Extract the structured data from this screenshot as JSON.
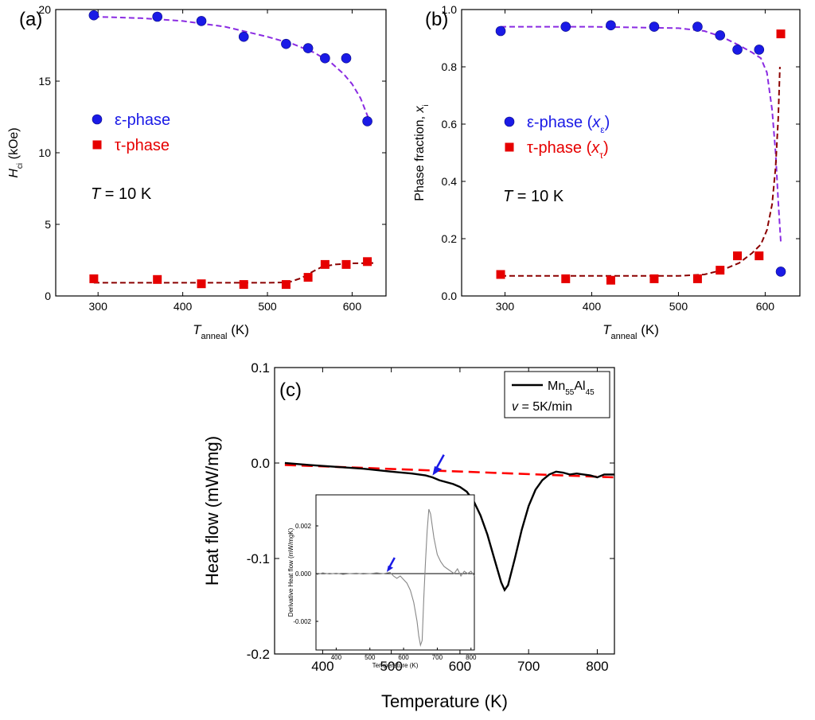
{
  "chart_data": [
    {
      "id": "a",
      "type": "scatter",
      "panel_label": "(a)",
      "xlabel_main": "T",
      "xlabel_sub": "anneal",
      "xlabel_unit": "(K)",
      "ylabel_main": "H",
      "ylabel_sub": "ci",
      "ylabel_unit": "(kOe)",
      "xlim": [
        250,
        640
      ],
      "ylim": [
        0,
        20
      ],
      "x_ticks": [
        300,
        400,
        500,
        600
      ],
      "y_ticks": [
        0,
        5,
        10,
        15,
        20
      ],
      "annotation": {
        "var": "T",
        "text": " = 10 K"
      },
      "legend": [
        {
          "label": "ε-phase",
          "color": "#1a1ae6",
          "marker": "circle"
        },
        {
          "label": "τ-phase",
          "color": "#e60000",
          "marker": "square"
        }
      ],
      "series": [
        {
          "name": "ε-phase",
          "marker": "circle",
          "color": "#1a1ae6",
          "x": [
            295,
            370,
            422,
            472,
            522,
            548,
            568,
            593,
            618
          ],
          "y": [
            19.6,
            19.5,
            19.2,
            18.1,
            17.6,
            17.3,
            16.6,
            16.6,
            12.2
          ]
        },
        {
          "name": "τ-phase",
          "marker": "square",
          "color": "#e60000",
          "x": [
            295,
            370,
            422,
            472,
            522,
            548,
            568,
            593,
            618
          ],
          "y": [
            1.2,
            1.15,
            0.85,
            0.8,
            0.8,
            1.3,
            2.2,
            2.2,
            2.4
          ]
        }
      ],
      "fits": [
        {
          "color": "#8a2be2",
          "x": [
            295,
            350,
            400,
            450,
            500,
            530,
            555,
            575,
            590,
            600,
            610,
            620
          ],
          "y": [
            19.5,
            19.4,
            19.2,
            18.8,
            18.1,
            17.6,
            17.0,
            16.3,
            15.5,
            14.8,
            13.8,
            12.3
          ]
        },
        {
          "color": "#8b0000",
          "x": [
            295,
            350,
            400,
            450,
            500,
            525,
            540,
            555,
            565,
            580,
            600,
            625
          ],
          "y": [
            0.92,
            0.92,
            0.92,
            0.92,
            0.92,
            0.95,
            1.25,
            1.75,
            2.05,
            2.2,
            2.28,
            2.3
          ]
        }
      ]
    },
    {
      "id": "b",
      "type": "scatter",
      "panel_label": "(b)",
      "xlabel_main": "T",
      "xlabel_sub": "anneal",
      "xlabel_unit": "(K)",
      "ylabel_main": "Phase fraction, ",
      "ylabel_var": "x",
      "ylabel_sub": "i",
      "xlim": [
        250,
        640
      ],
      "ylim": [
        0,
        1
      ],
      "x_ticks": [
        300,
        400,
        500,
        600
      ],
      "y_ticks": [
        0.0,
        0.2,
        0.4,
        0.6,
        0.8,
        1.0
      ],
      "annotation": {
        "var": "T",
        "text": " = 10 K"
      },
      "legend": [
        {
          "label": "ε-phase (",
          "var": "x",
          "sub": "ε",
          "end": ")",
          "color": "#1a1ae6",
          "marker": "circle"
        },
        {
          "label": "τ-phase (",
          "var": "x",
          "sub": "τ",
          "end": ")",
          "color": "#e60000",
          "marker": "square"
        }
      ],
      "series": [
        {
          "name": "ε-phase (x_ε)",
          "marker": "circle",
          "color": "#1a1ae6",
          "x": [
            295,
            370,
            422,
            472,
            522,
            548,
            568,
            593,
            618
          ],
          "y": [
            0.925,
            0.94,
            0.945,
            0.94,
            0.94,
            0.91,
            0.86,
            0.86,
            0.085
          ]
        },
        {
          "name": "τ-phase (x_τ)",
          "marker": "square",
          "color": "#e60000",
          "x": [
            295,
            370,
            422,
            472,
            522,
            548,
            568,
            593,
            618
          ],
          "y": [
            0.075,
            0.06,
            0.055,
            0.06,
            0.06,
            0.09,
            0.14,
            0.14,
            0.915
          ]
        }
      ],
      "fits": [
        {
          "color": "#8a2be2",
          "x": [
            295,
            400,
            500,
            530,
            550,
            570,
            585,
            595,
            602,
            608,
            612,
            615,
            618
          ],
          "y": [
            0.94,
            0.94,
            0.935,
            0.925,
            0.905,
            0.875,
            0.85,
            0.83,
            0.78,
            0.65,
            0.5,
            0.33,
            0.19
          ]
        },
        {
          "color": "#8b0000",
          "x": [
            295,
            400,
            500,
            530,
            550,
            570,
            585,
            595,
            602,
            608,
            612,
            615,
            617
          ],
          "y": [
            0.07,
            0.07,
            0.07,
            0.075,
            0.09,
            0.115,
            0.15,
            0.18,
            0.23,
            0.32,
            0.45,
            0.62,
            0.8
          ]
        }
      ]
    },
    {
      "id": "c",
      "type": "line",
      "panel_label": "(c)",
      "xlabel": "Temperature (K)",
      "ylabel": "Heat flow (mW/mg)",
      "xlim": [
        330,
        825
      ],
      "ylim": [
        -0.2,
        0.1
      ],
      "x_ticks": [
        400,
        500,
        600,
        700,
        800
      ],
      "y_ticks": [
        "-0.2",
        "-0.1",
        "0.0",
        "0.1"
      ],
      "y_tick_values": [
        -0.2,
        -0.1,
        0.0,
        0.1
      ],
      "legend": {
        "series_label_main": "Mn",
        "series_label_sub1": "55",
        "series_label_mid": "Al",
        "series_label_sub2": "45",
        "rate_var": "v",
        "rate_text": " = 5K/min"
      },
      "series": [
        {
          "name": "Mn55Al45",
          "color": "#000000",
          "x": [
            345,
            380,
            420,
            460,
            500,
            530,
            550,
            560,
            570,
            580,
            590,
            600,
            610,
            620,
            630,
            640,
            650,
            660,
            665,
            670,
            680,
            690,
            700,
            710,
            720,
            730,
            740,
            750,
            760,
            770,
            780,
            790,
            800,
            810,
            825
          ],
          "y": [
            0.0,
            -0.002,
            -0.004,
            -0.006,
            -0.009,
            -0.011,
            -0.013,
            -0.015,
            -0.018,
            -0.02,
            -0.022,
            -0.025,
            -0.03,
            -0.04,
            -0.055,
            -0.075,
            -0.1,
            -0.125,
            -0.133,
            -0.128,
            -0.1,
            -0.07,
            -0.045,
            -0.028,
            -0.018,
            -0.012,
            -0.009,
            -0.01,
            -0.012,
            -0.011,
            -0.012,
            -0.013,
            -0.015,
            -0.012,
            -0.012
          ]
        },
        {
          "name": "baseline",
          "color": "#ff0000",
          "x": [
            345,
            825
          ],
          "y": [
            -0.002,
            -0.015
          ]
        }
      ],
      "arrow": {
        "x": 560,
        "y": -0.013,
        "color": "#1a1ae6"
      },
      "inset": {
        "xlabel": "Temperature (K)",
        "ylabel": "Derivative Heat flow (mW/mgK)",
        "xlim": [
          340,
          810
        ],
        "ylim": [
          -0.0032,
          0.0033
        ],
        "x_ticks": [
          400,
          500,
          600,
          700,
          800
        ],
        "y_ticks": [
          "-0.002",
          "0.000",
          "0.002"
        ],
        "y_tick_values": [
          -0.002,
          0.0,
          0.002
        ],
        "arrow": {
          "x": 550,
          "y": 0.0,
          "color": "#1a1ae6"
        },
        "series": [
          {
            "name": "derivative",
            "color": "#888888",
            "x": [
              340,
              360,
              380,
              400,
              420,
              440,
              460,
              480,
              500,
              520,
              540,
              560,
              570,
              580,
              590,
              600,
              610,
              620,
              630,
              640,
              645,
              650,
              655,
              660,
              665,
              670,
              675,
              680,
              690,
              700,
              710,
              720,
              730,
              740,
              750,
              760,
              770,
              780,
              790,
              800,
              810
            ],
            "y": [
              -5e-05,
              3e-05,
              -2e-05,
              2e-05,
              -3e-05,
              0.0,
              2e-05,
              -2e-05,
              0.0,
              3e-05,
              0.0,
              5e-05,
              -0.0001,
              -0.0002,
              -0.0001,
              -0.00025,
              -0.0004,
              -0.0007,
              -0.0012,
              -0.002,
              -0.0026,
              -0.003,
              -0.0028,
              -0.001,
              0.0005,
              0.0018,
              0.0027,
              0.0025,
              0.0015,
              0.0008,
              0.0005,
              0.0003,
              0.0002,
              0.0001,
              0.0,
              0.0002,
              -0.0001,
              0.0001,
              0.0,
              0.0001,
              -0.0001
            ]
          }
        ]
      }
    }
  ]
}
